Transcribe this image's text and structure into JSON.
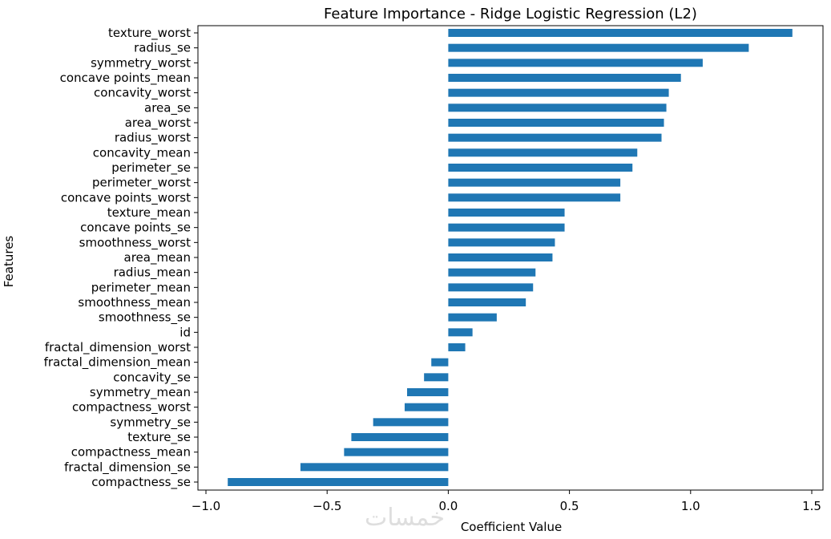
{
  "watermark": "خمسات",
  "chart_data": {
    "type": "bar",
    "orientation": "horizontal",
    "title": "Feature Importance - Ridge Logistic Regression (L2)",
    "xlabel": "Coefficient Value",
    "ylabel": "Features",
    "xlim": [
      -1.0,
      1.5
    ],
    "xticks": [
      -1.0,
      -0.5,
      0.0,
      0.5,
      1.0,
      1.5
    ],
    "xtick_labels": [
      "−1.0",
      "−0.5",
      "0.0",
      "0.5",
      "1.0",
      "1.5"
    ],
    "grid": false,
    "bar_color": "#1f77b4",
    "categories": [
      "texture_worst",
      "radius_se",
      "symmetry_worst",
      "concave points_mean",
      "concavity_worst",
      "area_se",
      "area_worst",
      "radius_worst",
      "concavity_mean",
      "perimeter_se",
      "perimeter_worst",
      "concave points_worst",
      "texture_mean",
      "concave points_se",
      "smoothness_worst",
      "area_mean",
      "radius_mean",
      "perimeter_mean",
      "smoothness_mean",
      "smoothness_se",
      "id",
      "fractal_dimension_worst",
      "fractal_dimension_mean",
      "concavity_se",
      "symmetry_mean",
      "compactness_worst",
      "symmetry_se",
      "texture_se",
      "compactness_mean",
      "fractal_dimension_se",
      "compactness_se"
    ],
    "values": [
      1.42,
      1.24,
      1.05,
      0.96,
      0.91,
      0.9,
      0.89,
      0.88,
      0.78,
      0.76,
      0.71,
      0.71,
      0.48,
      0.48,
      0.44,
      0.43,
      0.36,
      0.35,
      0.32,
      0.2,
      0.1,
      0.07,
      -0.07,
      -0.1,
      -0.17,
      -0.18,
      -0.31,
      -0.4,
      -0.43,
      -0.61,
      -0.91
    ]
  }
}
